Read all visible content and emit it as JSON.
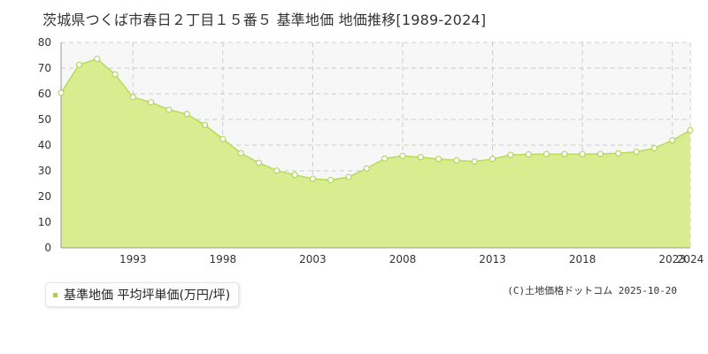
{
  "colors": {
    "area_fill": "#d9ec8f",
    "line": "#b7dc5a",
    "marker_fill": "#ffffff",
    "marker_stroke": "#a9d04a",
    "grid": "#cccccc",
    "plot_bg": "#f7f7f7",
    "legend_swatch": "#a9d04a"
  },
  "chart_data": {
    "type": "area",
    "title": "茨城県つくば市春日２丁目１５番５ 基準地価 地価推移[1989-2024]",
    "ylim": [
      0,
      80
    ],
    "xlim": [
      1989,
      2024
    ],
    "yticks": [
      0,
      10,
      20,
      30,
      40,
      50,
      60,
      70,
      80
    ],
    "xticks": [
      1993,
      1998,
      2003,
      2008,
      2013,
      2018,
      2023,
      2024
    ],
    "grid": true,
    "legend_position": "bottom-left",
    "series": [
      {
        "name": "基準地価 平均坪単価(万円/坪)",
        "x": [
          1989,
          1990,
          1991,
          1992,
          1993,
          1994,
          1995,
          1996,
          1997,
          1998,
          1999,
          2000,
          2001,
          2002,
          2003,
          2004,
          2005,
          2006,
          2007,
          2008,
          2009,
          2010,
          2011,
          2012,
          2013,
          2014,
          2015,
          2016,
          2017,
          2018,
          2019,
          2020,
          2021,
          2022,
          2023,
          2024
        ],
        "values": [
          60.4,
          71.3,
          73.6,
          67.6,
          58.7,
          56.7,
          53.8,
          52.1,
          47.9,
          42.4,
          36.9,
          33.1,
          30.1,
          28.4,
          26.9,
          26.4,
          27.6,
          30.9,
          34.8,
          35.8,
          35.3,
          34.6,
          34.1,
          33.6,
          34.6,
          36.2,
          36.4,
          36.5,
          36.5,
          36.5,
          36.6,
          36.8,
          37.4,
          38.8,
          41.9,
          45.8
        ]
      }
    ]
  },
  "legend": {
    "label": "基準地価 平均坪単価(万円/坪)"
  },
  "copyright": "(C)土地価格ドットコム 2025-10-20"
}
